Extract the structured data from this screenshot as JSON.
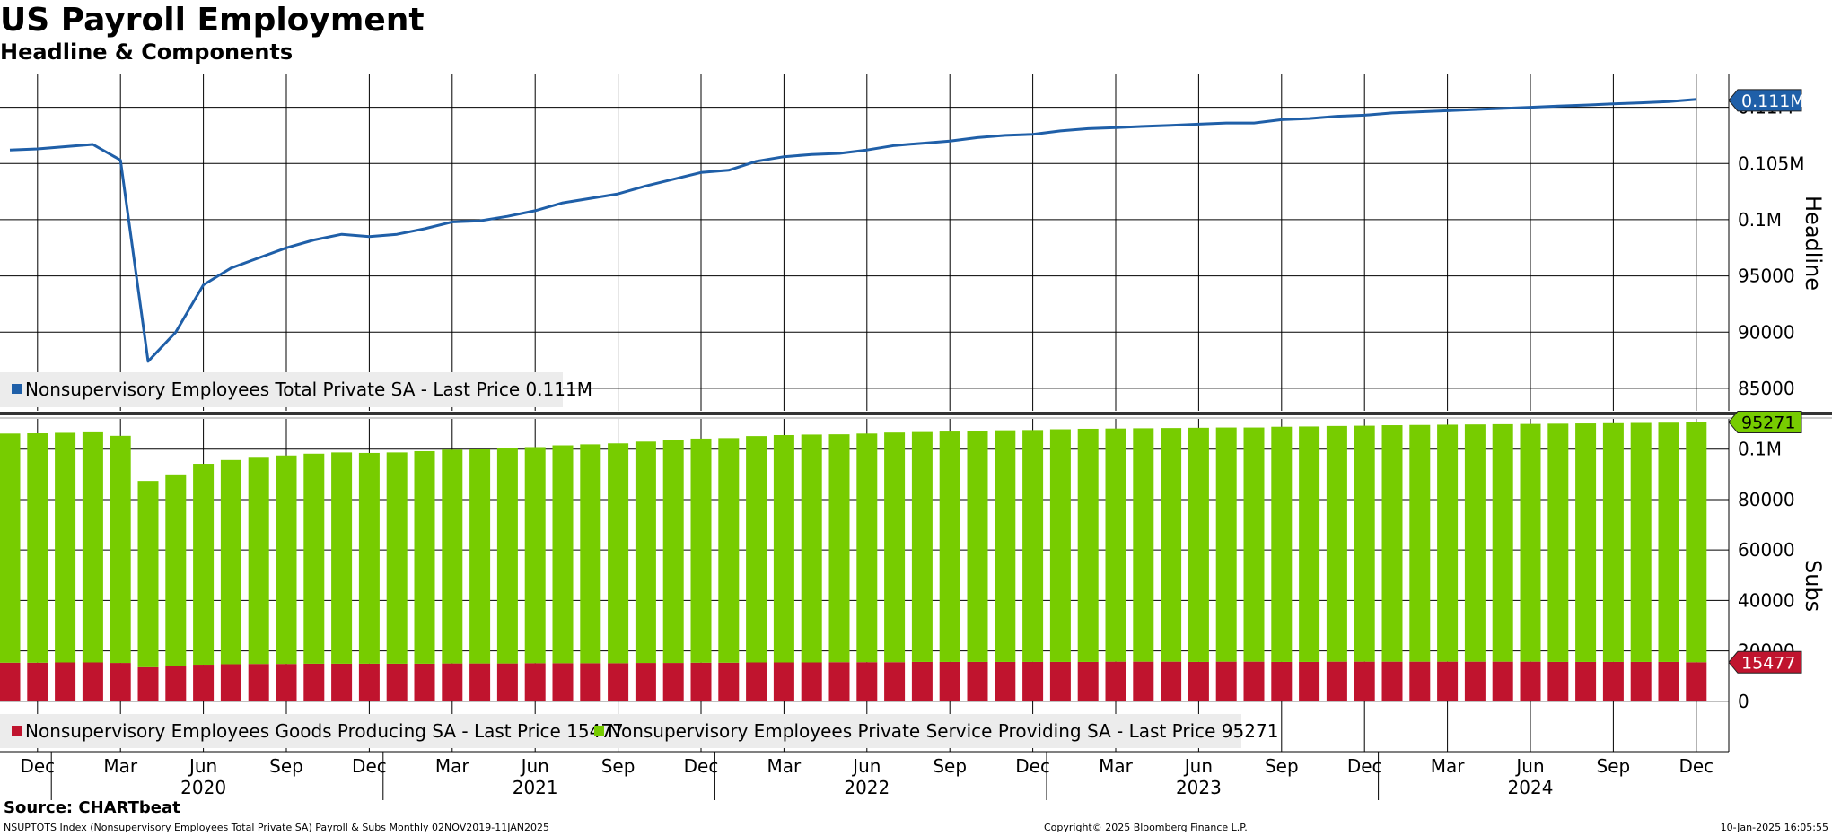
{
  "header": {
    "title": "US Payroll Employment",
    "subtitle": "Headline & Components",
    "source": "Source: CHARTbeat"
  },
  "footer": {
    "left": "NSUPTOTS Index (Nonsupervisory Employees Total Private SA) Payroll & Subs  Monthly 02NOV2019-11JAN2025",
    "center": "Copyright© 2025 Bloomberg Finance L.P.",
    "right": "10-Jan-2025 16:05:55"
  },
  "colors": {
    "line": "#1f5fa8",
    "goods": "#c0142e",
    "services": "#77cc00",
    "grid": "#000000",
    "legend_bg": "#ececec"
  },
  "chart_data": [
    {
      "type": "line",
      "panel": "top",
      "axis_title": "Headline",
      "ylim": [
        83000,
        113000
      ],
      "y_ticks": [
        85000,
        90000,
        95000,
        100000,
        105000,
        110000
      ],
      "y_tick_labels": [
        "85000",
        "90000",
        "95000",
        "0.1M",
        "0.105M",
        "0.11M"
      ],
      "last_value_label": "0.111M",
      "legend": "Nonsupervisory Employees Total Private SA - Last Price 0.111M",
      "x": [
        "Nov 2019",
        "Dec 2019",
        "Jan 2020",
        "Feb 2020",
        "Mar 2020",
        "Apr 2020",
        "May 2020",
        "Jun 2020",
        "Jul 2020",
        "Aug 2020",
        "Sep 2020",
        "Oct 2020",
        "Nov 2020",
        "Dec 2020",
        "Jan 2021",
        "Feb 2021",
        "Mar 2021",
        "Apr 2021",
        "May 2021",
        "Jun 2021",
        "Jul 2021",
        "Aug 2021",
        "Sep 2021",
        "Oct 2021",
        "Nov 2021",
        "Dec 2021",
        "Jan 2022",
        "Feb 2022",
        "Mar 2022",
        "Apr 2022",
        "May 2022",
        "Jun 2022",
        "Jul 2022",
        "Aug 2022",
        "Sep 2022",
        "Oct 2022",
        "Nov 2022",
        "Dec 2022",
        "Jan 2023",
        "Feb 2023",
        "Mar 2023",
        "Apr 2023",
        "May 2023",
        "Jun 2023",
        "Jul 2023",
        "Aug 2023",
        "Sep 2023",
        "Oct 2023",
        "Nov 2023",
        "Dec 2023",
        "Jan 2024",
        "Feb 2024",
        "Mar 2024",
        "Apr 2024",
        "May 2024",
        "Jun 2024",
        "Jul 2024",
        "Aug 2024",
        "Sep 2024",
        "Oct 2024",
        "Nov 2024",
        "Dec 2024"
      ],
      "values": [
        106200,
        106300,
        106500,
        106700,
        105300,
        87400,
        90000,
        94200,
        95700,
        96600,
        97500,
        98200,
        98700,
        98500,
        98700,
        99200,
        99800,
        99900,
        100300,
        100800,
        101500,
        101900,
        102300,
        103000,
        103600,
        104200,
        104400,
        105200,
        105600,
        105800,
        105900,
        106200,
        106600,
        106800,
        107000,
        107300,
        107500,
        107600,
        107900,
        108100,
        108200,
        108300,
        108400,
        108500,
        108600,
        108600,
        108900,
        109000,
        109200,
        109300,
        109500,
        109600,
        109700,
        109800,
        109900,
        110000,
        110100,
        110200,
        110300,
        110400,
        110500,
        110700
      ]
    },
    {
      "type": "bar",
      "stacked": true,
      "panel": "bottom",
      "axis_title": "Subs",
      "ylim": [
        -20000,
        112000
      ],
      "y_ticks": [
        0,
        20000,
        40000,
        60000,
        80000,
        100000
      ],
      "y_tick_labels": [
        "0",
        "20000",
        "40000",
        "60000",
        "80000",
        "0.1M"
      ],
      "series": [
        {
          "name": "Nonsupervisory Employees Goods Producing SA - Last Price 15477",
          "last_label": "15477",
          "values": [
            15300,
            15300,
            15400,
            15400,
            15200,
            13500,
            14000,
            14500,
            14700,
            14800,
            14800,
            14900,
            14900,
            14900,
            14900,
            14900,
            15000,
            15000,
            15000,
            15100,
            15100,
            15100,
            15100,
            15200,
            15200,
            15300,
            15300,
            15400,
            15400,
            15400,
            15500,
            15500,
            15500,
            15600,
            15600,
            15600,
            15600,
            15600,
            15600,
            15600,
            15700,
            15700,
            15700,
            15600,
            15700,
            15700,
            15600,
            15600,
            15700,
            15700,
            15700,
            15700,
            15700,
            15700,
            15700,
            15700,
            15600,
            15600,
            15600,
            15600,
            15600,
            15477
          ]
        },
        {
          "name": "Nonsupervisory Employees Private Service Providing SA - Last Price 95271",
          "last_label": "95271",
          "values": [
            90900,
            91000,
            91100,
            91300,
            90100,
            73900,
            76000,
            79700,
            81000,
            81800,
            82700,
            83300,
            83800,
            83600,
            83800,
            84300,
            84800,
            84900,
            85300,
            85700,
            86400,
            86800,
            87200,
            87800,
            88400,
            88900,
            89100,
            89800,
            90200,
            90400,
            90400,
            90700,
            91100,
            91200,
            91400,
            91700,
            91900,
            92000,
            92300,
            92500,
            92500,
            92600,
            92700,
            92900,
            92900,
            92900,
            93300,
            93400,
            93500,
            93600,
            93800,
            93900,
            94000,
            94100,
            94200,
            94300,
            94500,
            94600,
            94700,
            94800,
            94900,
            95271
          ]
        }
      ]
    }
  ],
  "x_axis": {
    "month_labels": [
      {
        "index": 1,
        "label": "Dec"
      },
      {
        "index": 4,
        "label": "Mar"
      },
      {
        "index": 7,
        "label": "Jun"
      },
      {
        "index": 10,
        "label": "Sep"
      },
      {
        "index": 13,
        "label": "Dec"
      },
      {
        "index": 16,
        "label": "Mar"
      },
      {
        "index": 19,
        "label": "Jun"
      },
      {
        "index": 22,
        "label": "Sep"
      },
      {
        "index": 25,
        "label": "Dec"
      },
      {
        "index": 28,
        "label": "Mar"
      },
      {
        "index": 31,
        "label": "Jun"
      },
      {
        "index": 34,
        "label": "Sep"
      },
      {
        "index": 37,
        "label": "Dec"
      },
      {
        "index": 40,
        "label": "Mar"
      },
      {
        "index": 43,
        "label": "Jun"
      },
      {
        "index": 46,
        "label": "Sep"
      },
      {
        "index": 49,
        "label": "Dec"
      },
      {
        "index": 52,
        "label": "Mar"
      },
      {
        "index": 55,
        "label": "Jun"
      },
      {
        "index": 58,
        "label": "Sep"
      },
      {
        "index": 61,
        "label": "Dec"
      }
    ],
    "year_labels": [
      {
        "index": 7,
        "label": "2020"
      },
      {
        "index": 19,
        "label": "2021"
      },
      {
        "index": 31,
        "label": "2022"
      },
      {
        "index": 43,
        "label": "2023"
      },
      {
        "index": 55,
        "label": "2024"
      }
    ],
    "year_boundaries": [
      2,
      14,
      26,
      38,
      50
    ]
  }
}
